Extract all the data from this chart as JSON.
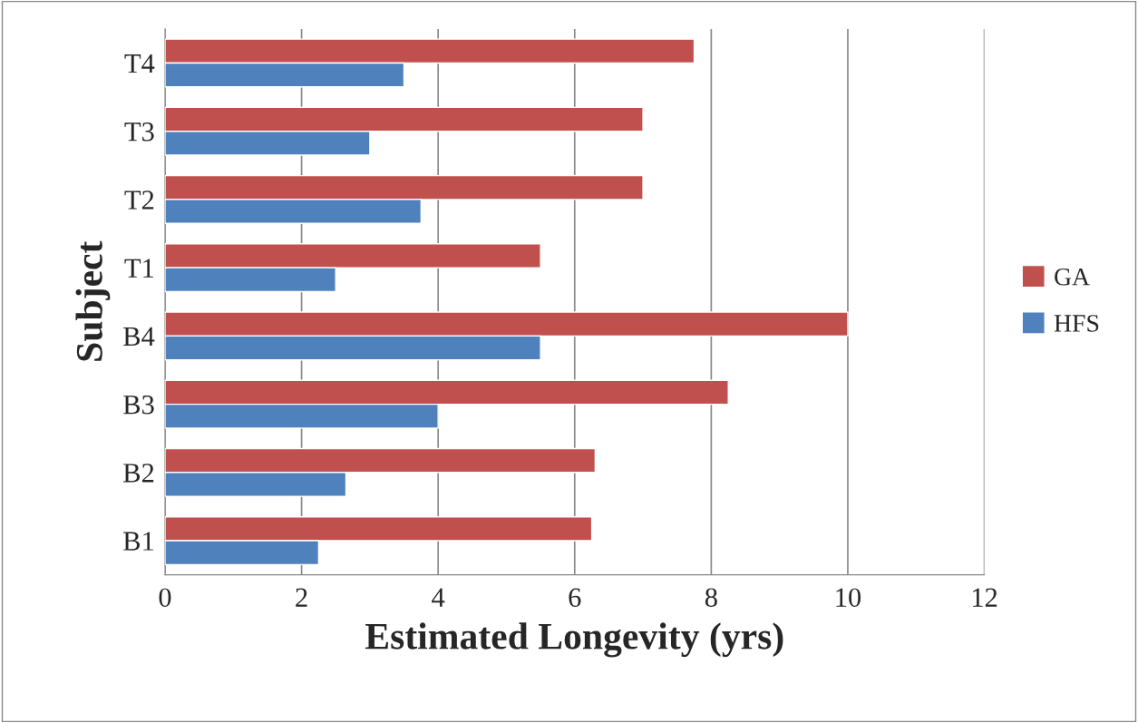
{
  "chart_data": {
    "type": "bar",
    "orientation": "horizontal",
    "xlabel": "Estimated Longevity (yrs)",
    "ylabel": "Subject",
    "categories": [
      "T4",
      "T3",
      "T2",
      "T1",
      "B4",
      "B3",
      "B2",
      "B1"
    ],
    "series": [
      {
        "name": "GA",
        "color": "#c0504d",
        "values": [
          7.75,
          7.0,
          7.0,
          5.5,
          10.0,
          8.25,
          6.3,
          6.25
        ]
      },
      {
        "name": "HFS",
        "color": "#4f81bd",
        "values": [
          3.5,
          3.0,
          3.75,
          2.5,
          5.5,
          4.0,
          2.65,
          2.25
        ]
      }
    ],
    "xlim": [
      0,
      12
    ],
    "xticks": [
      0,
      2,
      4,
      6,
      8,
      10,
      12
    ],
    "grid": "x",
    "legend": "right"
  }
}
